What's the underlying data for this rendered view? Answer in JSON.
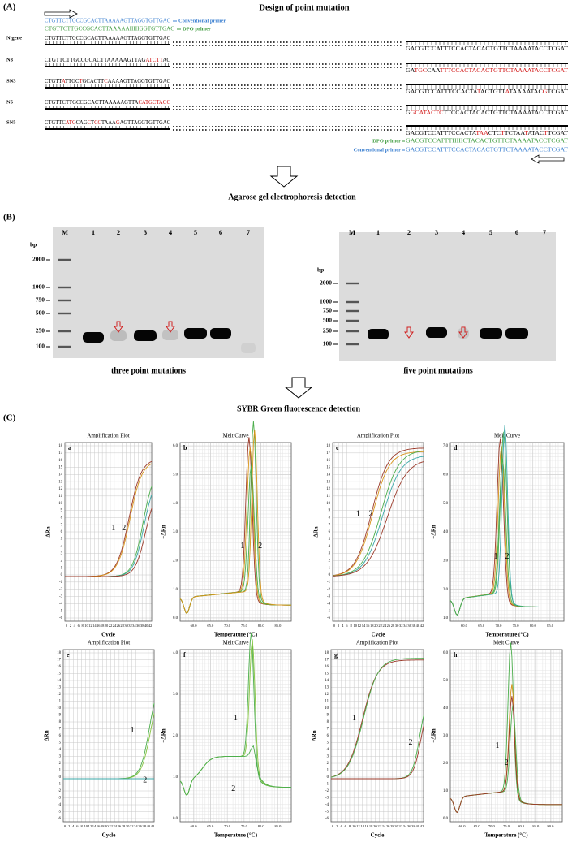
{
  "panel_a": {
    "label": "(A)",
    "title": "Design of point mutation",
    "conventional_primer_top": {
      "sequence": "CTGTTCTTGCCGCACTTAAAAAGTTAGGTGTTGAC",
      "name": "Conventional primer"
    },
    "dpo_primer_top": {
      "sequence": "CTGTTCTTGCCGCACTTAAAAAIIIIIGGTGTTGAC",
      "name": "DPO primer"
    },
    "rows": [
      {
        "name": "N gene",
        "left_segments": [
          "CTGTTCTTGCCGCACTTAAAAAGTTAGGTGTTGAC"
        ],
        "right_segments": [
          "GACGTCCATTTCCACTACACTGTTCTAAAATACCTCGAT"
        ]
      },
      {
        "name": "N3",
        "left_segments": [
          "CTGTTCTTGCCGCACTTAAAAAGTTAG",
          "ATCTT",
          "AC"
        ],
        "right_segments": [
          "GA",
          "TGC",
          "CAA",
          "TTTCCACTACACTGTTCTAAAATACCTCGAT"
        ]
      },
      {
        "name": "SN3",
        "left_segments": [
          "CTGTT",
          "A",
          "TTGC",
          "T",
          "GCACTT",
          "C",
          "AAAAGTTAGGTGTTGAC"
        ],
        "right_segments": [
          "GACGTCCATTTCCACTA",
          "T",
          "ACTGTT",
          "A",
          "TAAAATAC",
          "G",
          "TCGAT"
        ]
      },
      {
        "name": "N5",
        "left_segments": [
          "CTGTTCTTGCCGCACTTAAAAAGTTA",
          "CATGCTAGC"
        ],
        "right_segments": [
          "G",
          "GCATACTC",
          "TTCCACTACACTGTTCTAAAATACCTCGAT"
        ]
      },
      {
        "name": "SN5",
        "left_segments": [
          "CTGTTC",
          "ATG",
          "CAG",
          "C",
          "T",
          "CC",
          "TAAA",
          "G",
          "AGTTAGGTGTTGAC"
        ],
        "right_segments": [
          "GACGTCCATTTCCACTA",
          "TAA",
          "CTC",
          "T",
          "TCTAA",
          "T",
          "ATAC",
          "T",
          "TCGAT"
        ]
      }
    ],
    "dpo_primer_bottom": {
      "name": "DPO primer",
      "sequence": "GACGTCCATTTIIIIICTACACTGTTCTAAAATACCTCGAT"
    },
    "conventional_primer_bottom": {
      "name": "Conventional primer",
      "sequence": "GACGTCCATTTCCACTACACTGTTCTAAAATACCTCGAT"
    },
    "next_step": "Agarose gel electrophoresis detection"
  },
  "panel_b": {
    "label": "(B)",
    "gels": [
      {
        "lanes": [
          "M",
          "1",
          "2",
          "3",
          "4",
          "5",
          "6",
          "7"
        ],
        "unit": "bp",
        "ladder": [
          "2000",
          "1000",
          "750",
          "500",
          "250",
          "100"
        ],
        "caption": "three point mutations"
      },
      {
        "lanes": [
          "M",
          "1",
          "2",
          "3",
          "4",
          "5",
          "6",
          "7"
        ],
        "unit": "bp",
        "ladder": [
          "2000",
          "1000",
          "750",
          "500",
          "250",
          "100"
        ],
        "caption": "five point mutations"
      }
    ],
    "next_step": "SYBR Green fluorescence detection"
  },
  "panel_c": {
    "label": "(C)",
    "plots": [
      {
        "letter": "a",
        "title": "Amplification Plot",
        "y_label": "ΔRn",
        "x_label": "Cycle",
        "yticks": [
          "18",
          "17",
          "16",
          "15",
          "14",
          "13",
          "12",
          "11",
          "10",
          "9",
          "8",
          "7",
          "6",
          "5",
          "4",
          "3",
          "2",
          "1",
          "0",
          "-1",
          "-2",
          "-3",
          "-4",
          "-5",
          "-6"
        ],
        "xticks": [
          "0",
          "2",
          "4",
          "6",
          "8",
          "10",
          "12",
          "14",
          "16",
          "18",
          "20",
          "22",
          "24",
          "26",
          "28",
          "30",
          "32",
          "34",
          "36",
          "38",
          "40",
          "42"
        ],
        "curve_labels": [
          "1",
          "2"
        ]
      },
      {
        "letter": "b",
        "title": "Melt Curve",
        "y_label": "−ΔRn",
        "x_label": "Temperature (°C)",
        "yticks": [
          "6.0",
          "5.0",
          "4.0",
          "3.0",
          "2.0",
          "1.0",
          "0.0"
        ],
        "xticks": [
          "60.0",
          "65.0",
          "70.0",
          "75.0",
          "80.0",
          "85.0"
        ],
        "curve_labels": [
          "1",
          "2"
        ]
      },
      {
        "letter": "c",
        "title": "Amplification Plot",
        "y_label": "ΔRn",
        "x_label": "Cycle",
        "yticks": [
          "18",
          "17",
          "16",
          "15",
          "14",
          "13",
          "12",
          "11",
          "10",
          "9",
          "8",
          "7",
          "6",
          "5",
          "4",
          "3",
          "2",
          "1",
          "0",
          "-1",
          "-2",
          "-3",
          "-4",
          "-5",
          "-6"
        ],
        "xticks": [
          "0",
          "2",
          "4",
          "6",
          "8",
          "10",
          "12",
          "14",
          "16",
          "18",
          "20",
          "22",
          "24",
          "26",
          "28",
          "30",
          "32",
          "34",
          "36",
          "38",
          "40",
          "42"
        ],
        "curve_labels": [
          "1",
          "2"
        ]
      },
      {
        "letter": "d",
        "title": "Melt Curve",
        "y_label": "−ΔRn",
        "x_label": "Temperature (°C)",
        "yticks": [
          "7.0",
          "6.0",
          "5.0",
          "4.0",
          "3.0",
          "2.0",
          "1.0"
        ],
        "xticks": [
          "60.0",
          "65.0",
          "70.0",
          "75.0",
          "80.0",
          "85.0"
        ],
        "curve_labels": [
          "1",
          "2"
        ]
      },
      {
        "letter": "e",
        "title": "Amplification Plot",
        "y_label": "ΔRn",
        "x_label": "Cycle",
        "yticks": [
          "18",
          "17",
          "16",
          "15",
          "14",
          "13",
          "12",
          "11",
          "10",
          "9",
          "8",
          "7",
          "6",
          "5",
          "4",
          "3",
          "2",
          "1",
          "0",
          "-1",
          "-2",
          "-3",
          "-4",
          "-5",
          "-6"
        ],
        "xticks": [
          "0",
          "2",
          "4",
          "6",
          "8",
          "10",
          "12",
          "14",
          "16",
          "18",
          "20",
          "22",
          "24",
          "26",
          "28",
          "30",
          "32",
          "34",
          "36",
          "38",
          "40",
          "42"
        ],
        "curve_labels": [
          "1",
          "2"
        ]
      },
      {
        "letter": "f",
        "title": "Melt Curve",
        "y_label": "−ΔRn",
        "x_label": "Temperature (°C)",
        "yticks": [
          "4.0",
          "3.0",
          "2.0",
          "1.0",
          "0.0"
        ],
        "xticks": [
          "60.0",
          "65.0",
          "70.0",
          "75.0",
          "80.0",
          "85.0"
        ],
        "curve_labels": [
          "1",
          "2"
        ]
      },
      {
        "letter": "g",
        "title": "Amplification Plot",
        "y_label": "ΔRn",
        "x_label": "Cycle",
        "yticks": [
          "18",
          "17",
          "16",
          "15",
          "14",
          "13",
          "12",
          "11",
          "10",
          "9",
          "8",
          "7",
          "6",
          "5",
          "4",
          "3",
          "2",
          "1",
          "0",
          "-1",
          "-2",
          "-3",
          "-4",
          "-5",
          "-6"
        ],
        "xticks": [
          "0",
          "2",
          "4",
          "6",
          "8",
          "10",
          "12",
          "14",
          "16",
          "18",
          "20",
          "22",
          "24",
          "26",
          "28",
          "30",
          "32",
          "34",
          "36",
          "38",
          "40",
          "42"
        ],
        "curve_labels": [
          "1",
          "2"
        ]
      },
      {
        "letter": "h",
        "title": "Melt Curve",
        "y_label": "−ΔRn",
        "x_label": "Temperature (°C)",
        "yticks": [
          "6.0",
          "5.0",
          "4.0",
          "3.0",
          "2.0",
          "1.0",
          "0.0"
        ],
        "xticks": [
          "60.0",
          "65.0",
          "70.0",
          "75.0",
          "80.0",
          "85.0",
          "90.0"
        ],
        "curve_labels": [
          "1",
          "2"
        ]
      }
    ]
  }
}
